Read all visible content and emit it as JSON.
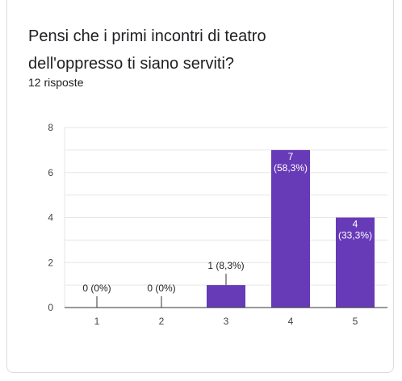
{
  "question": {
    "title_line1": "Pensi che i primi incontri di teatro",
    "title_line2": "dell'oppresso ti siano serviti?",
    "responses": "12 risposte"
  },
  "colors": {
    "bar": "#673ab7",
    "grid": "#e6e6e6",
    "axis": "#333333"
  },
  "chart_data": {
    "type": "bar",
    "title": "",
    "xlabel": "",
    "ylabel": "",
    "categories": [
      "1",
      "2",
      "3",
      "4",
      "5"
    ],
    "values": [
      0,
      0,
      1,
      7,
      4
    ],
    "data_labels": [
      [
        "0 (0%)"
      ],
      [
        "0 (0%)"
      ],
      [
        "1 (8,3%)"
      ],
      [
        "7",
        "(58,3%)"
      ],
      [
        "4",
        "(33,3%)"
      ]
    ],
    "ylim": [
      0,
      8
    ],
    "yticks": [
      0,
      2,
      4,
      6,
      8
    ],
    "grid": true,
    "legend": "none"
  }
}
